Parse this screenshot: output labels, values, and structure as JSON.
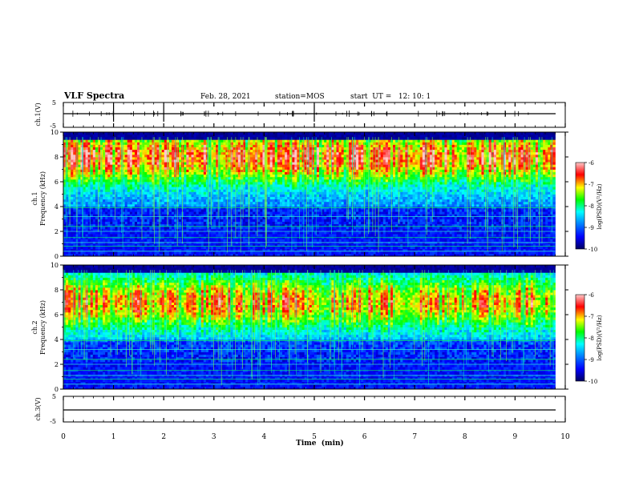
{
  "header": {
    "title": "VLF Spectra",
    "date": "Feb. 28, 2021",
    "station": "station=MOS",
    "start": "start  UT =   12: 10: 1"
  },
  "colors": {
    "frame": "#000000",
    "background": "#ffffff",
    "colormap": [
      "#000060",
      "#0000ff",
      "#0080ff",
      "#00ffff",
      "#00ff00",
      "#ffff00",
      "#ff0000",
      "#ffc8c8"
    ]
  },
  "chart_data": [
    {
      "type": "line",
      "panel": "ch1-waveform",
      "ylabel": "ch.1(V)",
      "ylim": [
        -5,
        5
      ],
      "yticks": [
        "5",
        "-5"
      ],
      "series": [
        {
          "x": [
            0,
            9.8
          ],
          "values": [
            0,
            0
          ]
        }
      ]
    },
    {
      "type": "heatmap",
      "panel": "ch1-spectrogram",
      "ylabel": "ch.1\nFrequency (kHz)",
      "ylim": [
        0,
        10
      ],
      "yticks": [
        "0",
        "2",
        "4",
        "6",
        "8",
        "10"
      ],
      "colorbar": {
        "label": "log(PSD)(V²/Hz)",
        "ticks": [
          "-6",
          "-7",
          "-8",
          "-9",
          "-10"
        ],
        "range": [
          -10,
          -6
        ]
      }
    },
    {
      "type": "heatmap",
      "panel": "ch2-spectrogram",
      "ylabel": "ch.2\nFrequency (kHz)",
      "ylim": [
        0,
        10
      ],
      "yticks": [
        "0",
        "2",
        "4",
        "6",
        "8",
        "10"
      ],
      "colorbar": {
        "label": "log(PSD)(V²/Hz)",
        "ticks": [
          "-6",
          "-7",
          "-8",
          "-9",
          "-10"
        ],
        "range": [
          -10,
          -6
        ]
      }
    },
    {
      "type": "line",
      "panel": "ch3-waveform",
      "ylabel": "ch.3(V)",
      "ylim": [
        -5,
        5
      ],
      "yticks": [
        "5",
        "-5"
      ],
      "series": [
        {
          "x": [
            0,
            9.8
          ],
          "values": [
            0,
            0
          ]
        }
      ]
    }
  ],
  "xaxis": {
    "label": "Time  (min)",
    "ticks": [
      "0",
      "1",
      "2",
      "3",
      "4",
      "5",
      "6",
      "7",
      "8",
      "9",
      "10"
    ],
    "range": [
      0,
      10
    ]
  }
}
